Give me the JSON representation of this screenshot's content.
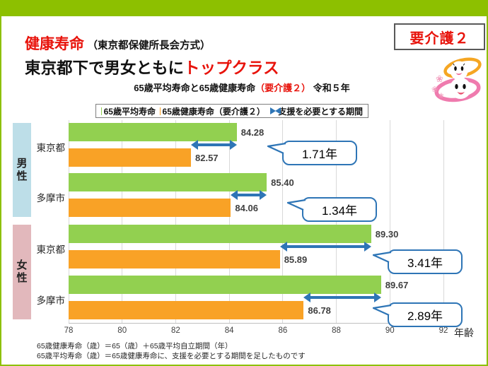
{
  "header": {
    "badge": "要介護２",
    "title": {
      "red": "健康寿命",
      "method": "（東京都保健所長会方式）",
      "line2_black": "東京都下で男女ともに",
      "line2_red": "トップクラス"
    }
  },
  "chart_data": {
    "type": "bar",
    "title_parts": {
      "before": "65歳平均寿命と65歳健康寿命",
      "red": "（要介護２）",
      "after": "令和５年"
    },
    "legend": {
      "series": [
        {
          "label": "65歳平均寿命",
          "color": "#92D050"
        },
        {
          "label": "65歳健康寿命（要介護２）",
          "color": "#F9A226"
        }
      ],
      "arrow": {
        "label": "支援を必要とする期間",
        "color": "#2E75B6"
      }
    },
    "xlabel": "年齢",
    "xlim": [
      78,
      92
    ],
    "x_ticks": [
      78,
      80,
      82,
      84,
      86,
      88,
      90,
      92
    ],
    "grid": true,
    "groups": [
      {
        "name": "男性",
        "band_color": "#BDDEE8",
        "rows": [
          {
            "label": "東京都",
            "mean_lifespan": "84.28",
            "healthy_lifespan": "82.57",
            "gap": "1.71年"
          },
          {
            "label": "多摩市",
            "mean_lifespan": "85.40",
            "healthy_lifespan": "84.06",
            "gap": "1.34年"
          }
        ]
      },
      {
        "name": "女性",
        "band_color": "#E2B8BC",
        "rows": [
          {
            "label": "東京都",
            "mean_lifespan": "89.30",
            "healthy_lifespan": "85.89",
            "gap": "3.41年"
          },
          {
            "label": "多摩市",
            "mean_lifespan": "89.67",
            "healthy_lifespan": "86.78",
            "gap": "2.89年"
          }
        ]
      }
    ]
  },
  "footer": {
    "lines": [
      "65歳健康寿命（歳）＝65（歳）＋65歳平均自立期間（年）",
      "65歳平均寿命（歳）＝65歳健康寿命に、支援を必要とする期間を足したものです"
    ]
  }
}
